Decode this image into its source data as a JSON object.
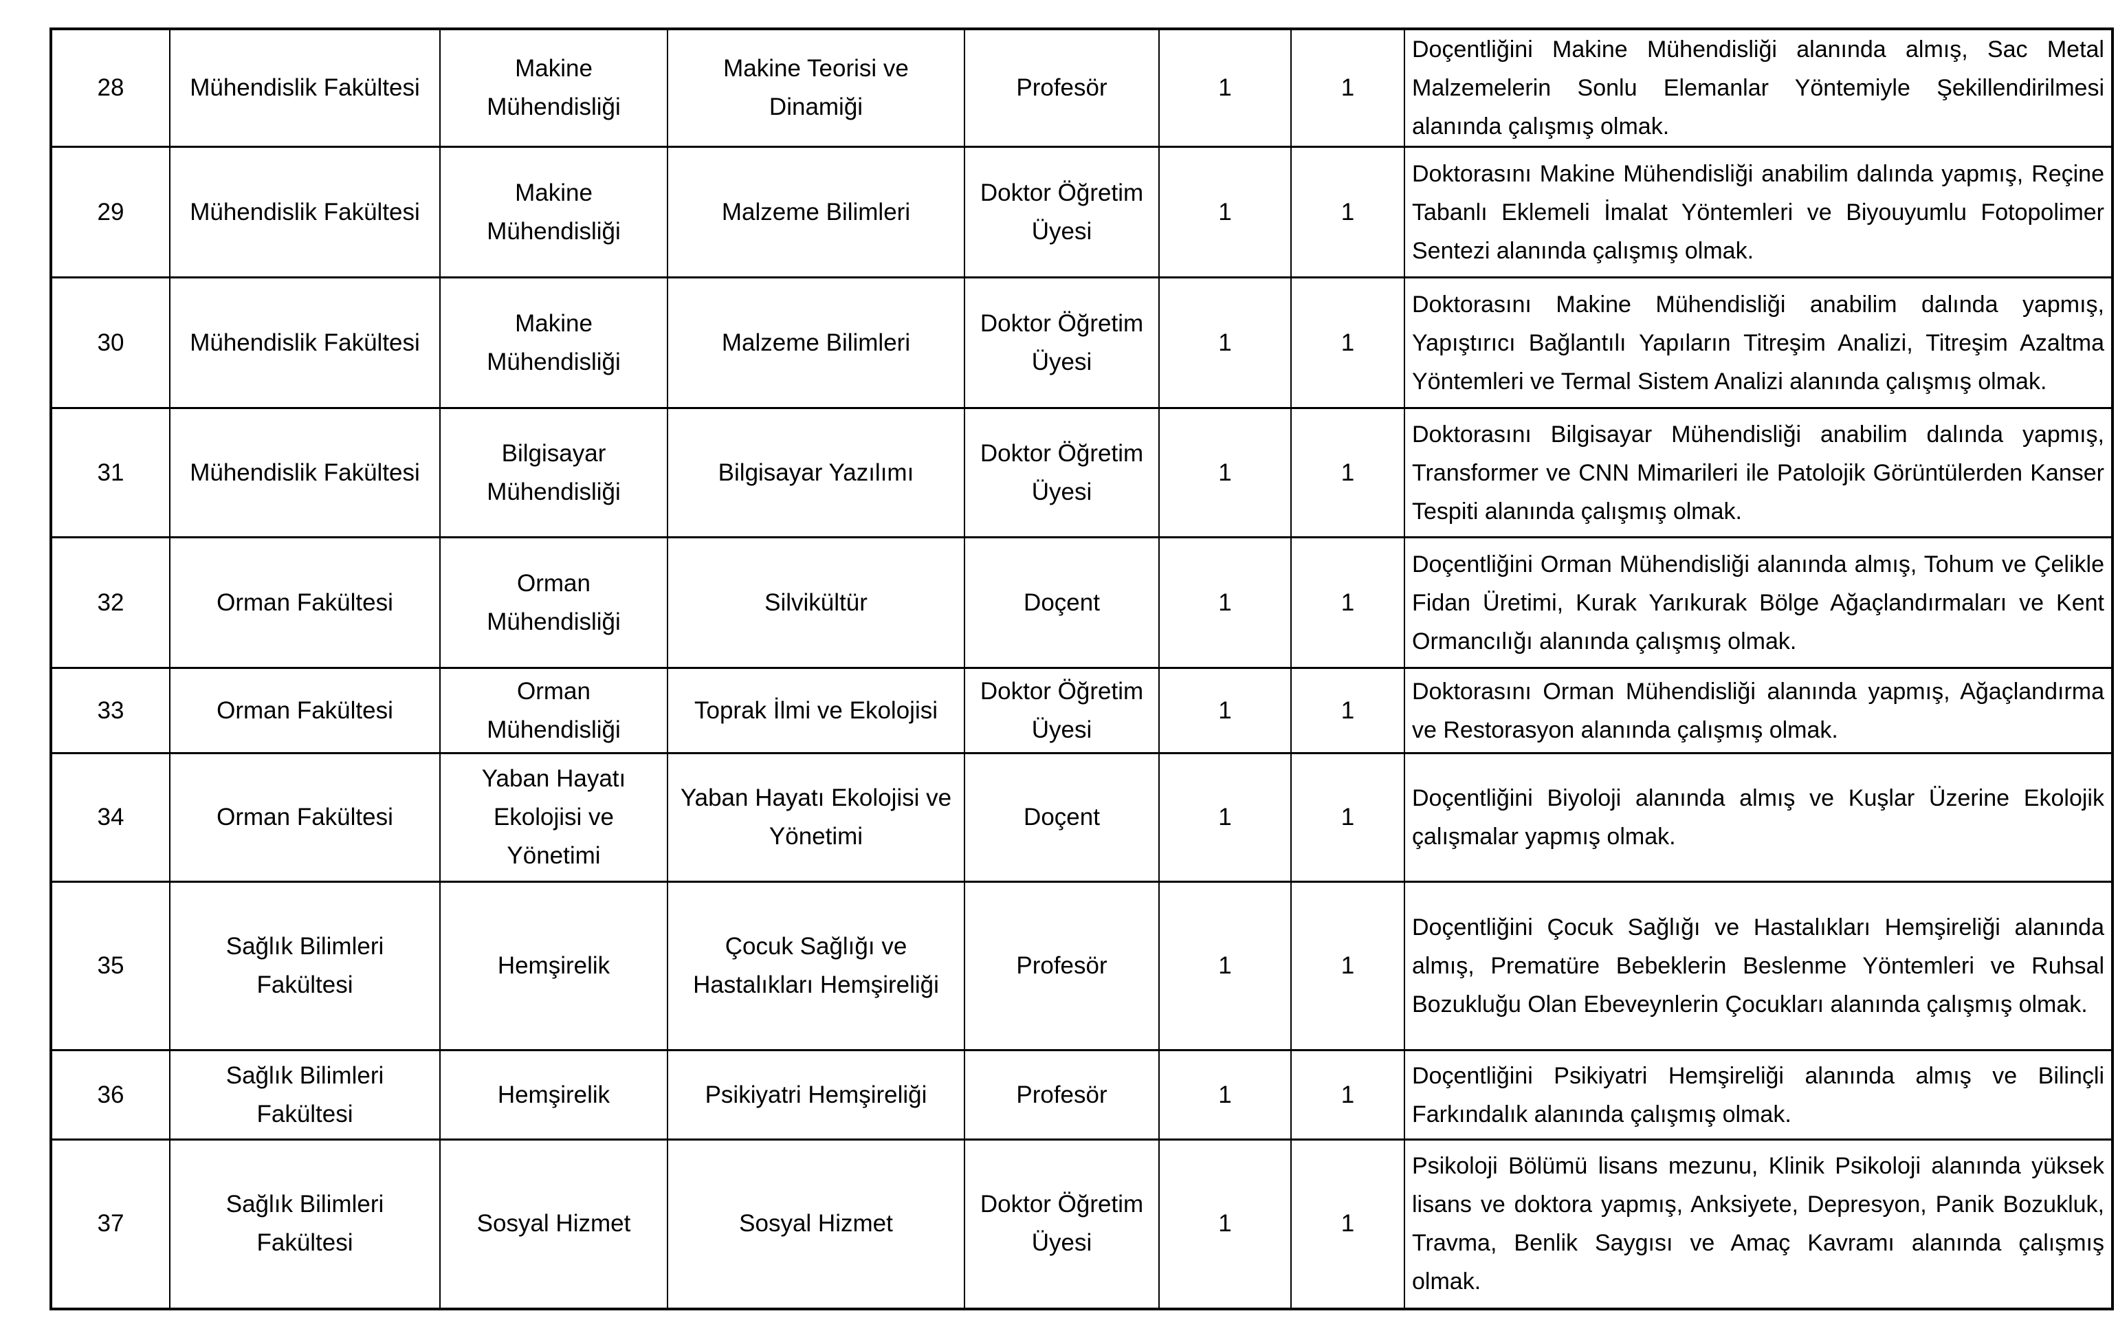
{
  "colors": {
    "background": "#ffffff",
    "border": "#000000",
    "text": "#000000"
  },
  "table": {
    "rows": [
      {
        "no": "28",
        "faculty": "Mühendislik Fakültesi",
        "department": "Makine Mühendisliği",
        "program": "Makine Teorisi ve Dinamiği",
        "title": "Profesör",
        "count1": "1",
        "count2": "1",
        "requirement": "Doçentliğini Makine Mühendisliği alanında almış, Sac Metal Malzemelerin Sonlu Elemanlar Yöntemiyle Şekillendirilmesi alanında çalışmış olmak."
      },
      {
        "no": "29",
        "faculty": "Mühendislik Fakültesi",
        "department": "Makine Mühendisliği",
        "program": "Malzeme Bilimleri",
        "title": "Doktor Öğretim Üyesi",
        "count1": "1",
        "count2": "1",
        "requirement": "Doktorasını Makine Mühendisliği anabilim dalında yapmış, Reçine Tabanlı Eklemeli İmalat Yöntemleri ve Biyouyumlu Fotopolimer Sentezi alanında çalışmış olmak."
      },
      {
        "no": "30",
        "faculty": "Mühendislik Fakültesi",
        "department": "Makine Mühendisliği",
        "program": "Malzeme Bilimleri",
        "title": "Doktor Öğretim Üyesi",
        "count1": "1",
        "count2": "1",
        "requirement": "Doktorasını Makine Mühendisliği anabilim dalında yapmış, Yapıştırıcı Bağlantılı Yapıların Titreşim Analizi, Titreşim Azaltma Yöntemleri ve Termal Sistem Analizi alanında çalışmış olmak."
      },
      {
        "no": "31",
        "faculty": "Mühendislik Fakültesi",
        "department": "Bilgisayar Mühendisliği",
        "program": "Bilgisayar Yazılımı",
        "title": "Doktor Öğretim Üyesi",
        "count1": "1",
        "count2": "1",
        "requirement": "Doktorasını Bilgisayar Mühendisliği anabilim dalında yapmış, Transformer ve CNN Mimarileri ile Patolojik Görüntülerden Kanser Tespiti alanında çalışmış olmak."
      },
      {
        "no": "32",
        "faculty": "Orman Fakültesi",
        "department": "Orman Mühendisliği",
        "program": "Silvikültür",
        "title": "Doçent",
        "count1": "1",
        "count2": "1",
        "requirement": "Doçentliğini Orman Mühendisliği alanında almış, Tohum ve Çelikle Fidan Üretimi, Kurak Yarıkurak Bölge Ağaçlandırmaları ve Kent Ormancılığı alanında çalışmış olmak."
      },
      {
        "no": "33",
        "faculty": "Orman Fakültesi",
        "department": "Orman Mühendisliği",
        "program": "Toprak İlmi ve Ekolojisi",
        "title": "Doktor Öğretim Üyesi",
        "count1": "1",
        "count2": "1",
        "requirement": "Doktorasını Orman Mühendisliği alanında yapmış, Ağaçlandırma ve Restorasyon alanında çalışmış olmak."
      },
      {
        "no": "34",
        "faculty": "Orman Fakültesi",
        "department": "Yaban Hayatı Ekolojisi ve Yönetimi",
        "program": "Yaban Hayatı Ekolojisi ve Yönetimi",
        "title": "Doçent",
        "count1": "1",
        "count2": "1",
        "requirement": "Doçentliğini Biyoloji alanında almış ve Kuşlar Üzerine Ekolojik çalışmalar yapmış olmak."
      },
      {
        "no": "35",
        "faculty": "Sağlık Bilimleri Fakültesi",
        "department": "Hemşirelik",
        "program": "Çocuk Sağlığı ve Hastalıkları Hemşireliği",
        "title": "Profesör",
        "count1": "1",
        "count2": "1",
        "requirement": "Doçentliğini Çocuk Sağlığı ve Hastalıkları Hemşireliği alanında almış, Prematüre Bebeklerin Beslenme Yöntemleri ve Ruhsal Bozukluğu Olan Ebeveynlerin Çocukları alanında çalışmış olmak."
      },
      {
        "no": "36",
        "faculty": "Sağlık Bilimleri Fakültesi",
        "department": "Hemşirelik",
        "program": "Psikiyatri Hemşireliği",
        "title": "Profesör",
        "count1": "1",
        "count2": "1",
        "requirement": "Doçentliğini Psikiyatri Hemşireliği alanında almış ve Bilinçli Farkındalık alanında çalışmış olmak."
      },
      {
        "no": "37",
        "faculty": "Sağlık Bilimleri Fakültesi",
        "department": "Sosyal Hizmet",
        "program": "Sosyal Hizmet",
        "title": "Doktor Öğretim Üyesi",
        "count1": "1",
        "count2": "1",
        "requirement": "Psikoloji Bölümü lisans mezunu, Klinik Psikoloji alanında yüksek lisans ve doktora yapmış, Anksiyete, Depresyon, Panik Bozukluk, Travma, Benlik Saygısı ve Amaç Kavramı alanında çalışmış olmak."
      }
    ]
  }
}
